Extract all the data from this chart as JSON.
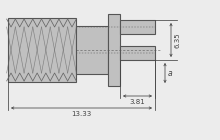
{
  "bg_color": "#ececec",
  "line_color": "#555555",
  "dim_color": "#444444",
  "part_fill": "#c0c0c0",
  "part_fill_dark": "#a0a0a0",
  "part_stroke": "#555555",
  "thread_color": "#666666",
  "dim_381": "3.81",
  "dim_1333": "13.33",
  "dim_635": "6.35",
  "dim_a": "a",
  "figsize": [
    2.2,
    1.4
  ],
  "dpi": 100
}
